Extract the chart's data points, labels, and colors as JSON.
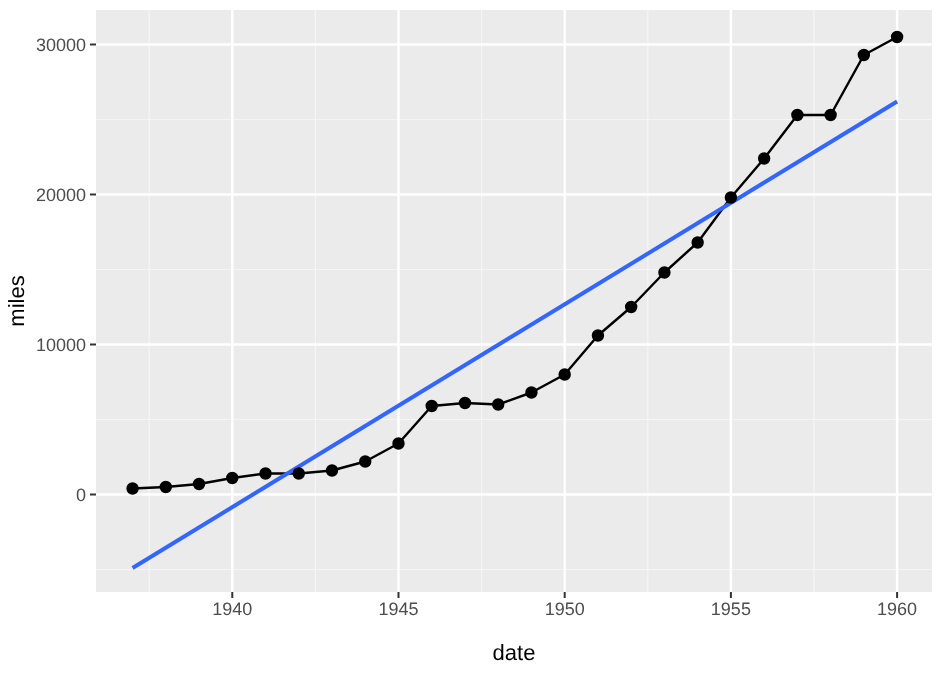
{
  "chart_data": {
    "type": "line",
    "xlabel": "date",
    "ylabel": "miles",
    "xlim": [
      1935.9,
      1961.05
    ],
    "xticks": [
      1940,
      1945,
      1950,
      1955,
      1960
    ],
    "ylim": [
      -6500,
      32300
    ],
    "yticks": [
      0,
      10000,
      20000,
      30000
    ],
    "grid": true,
    "series": [
      {
        "color": "#000000",
        "marker": "circle",
        "x": [
          1937,
          1938,
          1939,
          1940,
          1941,
          1942,
          1943,
          1944,
          1945,
          1946,
          1947,
          1948,
          1949,
          1950,
          1951,
          1952,
          1953,
          1954,
          1955,
          1956,
          1957,
          1958,
          1959,
          1960
        ],
        "values": [
          400,
          500,
          700,
          1100,
          1400,
          1400,
          1600,
          2200,
          3400,
          5900,
          6100,
          6000,
          6800,
          8000,
          10600,
          12500,
          14800,
          16800,
          19800,
          22400,
          25300,
          25300,
          29300,
          30500
        ]
      },
      {
        "color": "#3366ff",
        "marker": "none",
        "x": [
          1937,
          1960
        ],
        "values": [
          -4900,
          26200
        ]
      }
    ]
  }
}
